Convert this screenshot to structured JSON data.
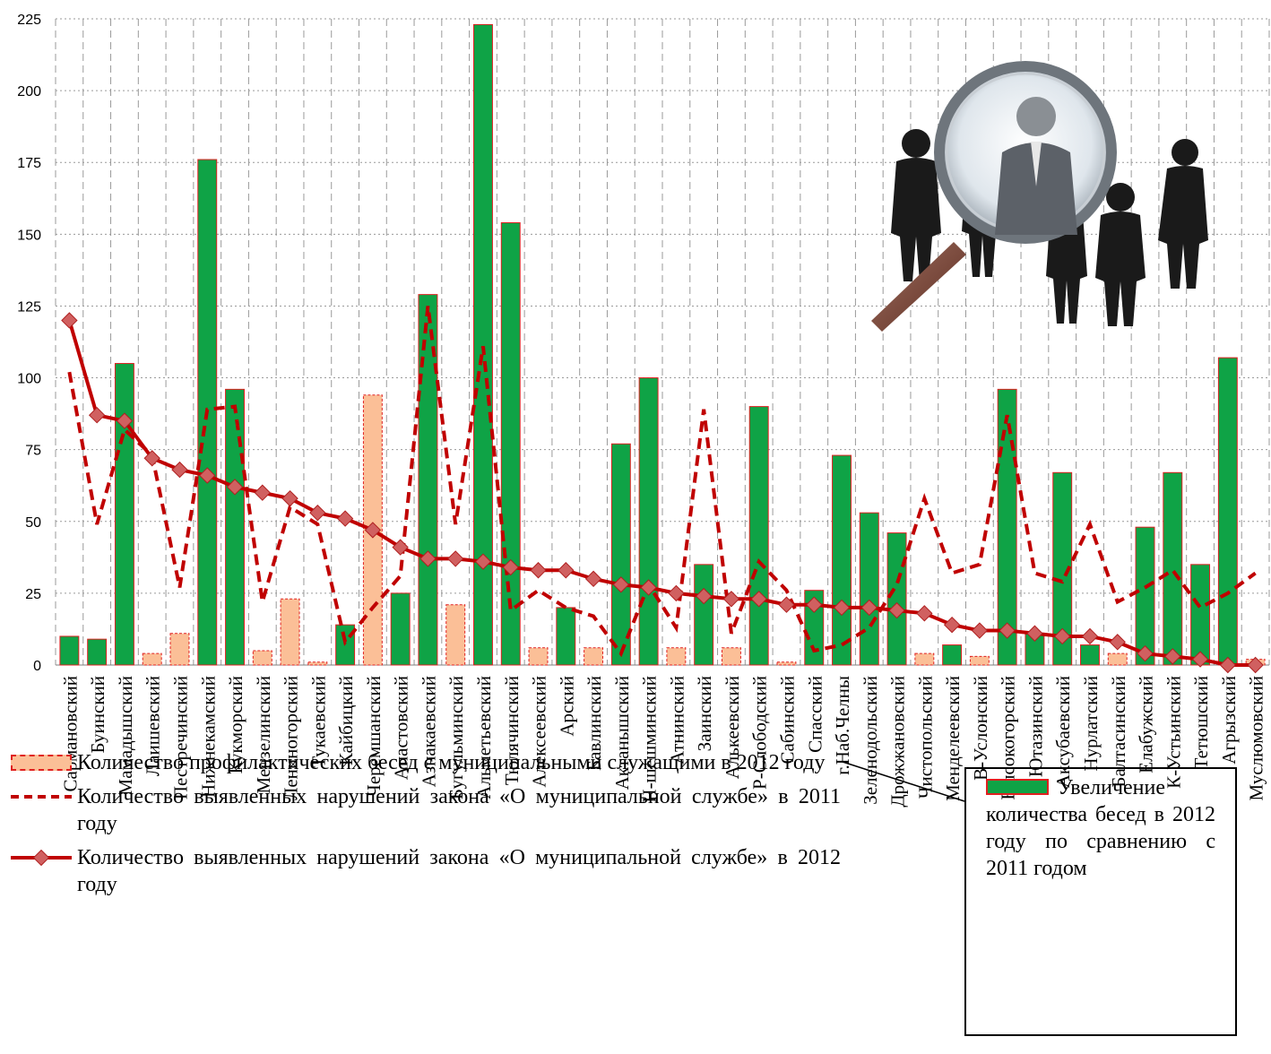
{
  "chart_data": {
    "type": "bar",
    "ylim": [
      0,
      225
    ],
    "yticks": [
      0,
      25,
      50,
      75,
      100,
      125,
      150,
      175,
      200,
      225
    ],
    "grid": true,
    "categories": [
      "Сармановский",
      "Буинский",
      "Мамадышский",
      "Лаишевский",
      "Пестречинский",
      "Нижнекамский",
      "Кукморский",
      "Мензелинский",
      "Лениногорский",
      "Тукаевский",
      "Кайбицкий",
      "Черемшанский",
      "Апастовский",
      "Азнакаевский",
      "Бугульминский",
      "Альметьевский",
      "Тюлячинский",
      "Алексеевский",
      "Арский",
      "Бавлинский",
      "Актанышский",
      "Н-шешминский",
      "Атнинский",
      "Заинский",
      "Алькеевский",
      "Р-Слободский",
      "Сабинский",
      "Спасский",
      "г.Наб.Челны",
      "Зеленодольский",
      "Дрожжановский",
      "Чистопольский",
      "Менделеевский",
      "В-Услонский",
      "Высокогорский",
      "Ютазинский",
      "Аксубаевский",
      "Нурлатский",
      "Балтасинский",
      "Елабужский",
      "К-Устьинский",
      "Тетюшский",
      "Агрызский",
      "Муслюмовский"
    ],
    "series": [
      {
        "name": "Количество профилактических бесед с муниципальными служащими в 2012 году",
        "kind": "bar",
        "color": "#fbbf97",
        "values": [
          10,
          9,
          105,
          4,
          11,
          176,
          96,
          5,
          23,
          1,
          14,
          94,
          25,
          129,
          21,
          223,
          154,
          6,
          20,
          6,
          77,
          100,
          6,
          35,
          6,
          90,
          1,
          26,
          73,
          53,
          46,
          4,
          7,
          3,
          96,
          11,
          67,
          7,
          4,
          48,
          67,
          35,
          107,
          2
        ]
      },
      {
        "name": "Увеличение количества бесед в 2012 году по сравнению с 2011 годом",
        "kind": "bar-flag",
        "color": "#0fa346",
        "values": [
          true,
          true,
          true,
          false,
          false,
          true,
          true,
          false,
          false,
          false,
          true,
          false,
          true,
          true,
          false,
          true,
          true,
          false,
          true,
          false,
          true,
          true,
          false,
          true,
          false,
          true,
          false,
          true,
          true,
          true,
          true,
          false,
          true,
          false,
          true,
          true,
          true,
          true,
          false,
          true,
          true,
          true,
          true,
          false
        ]
      },
      {
        "name": "Количество выявленных нарушений закона «О муниципальной службе» в 2011 году",
        "kind": "line-dashed",
        "color": "#c00000",
        "values": [
          102,
          49,
          82,
          73,
          27,
          89,
          90,
          22,
          55,
          49,
          8,
          20,
          31,
          125,
          49,
          111,
          19,
          26,
          20,
          17,
          4,
          28,
          13,
          89,
          11,
          36,
          26,
          5,
          7,
          13,
          28,
          58,
          32,
          35,
          87,
          32,
          29,
          49,
          22,
          27,
          33,
          20,
          25,
          32
        ]
      },
      {
        "name": "Количество выявленных нарушений закона «О муниципальной службе» в 2012 году",
        "kind": "line-markers",
        "color": "#c00000",
        "values": [
          120,
          87,
          85,
          72,
          68,
          66,
          62,
          60,
          58,
          53,
          51,
          47,
          41,
          37,
          37,
          36,
          34,
          33,
          33,
          30,
          28,
          27,
          25,
          24,
          23,
          23,
          21,
          21,
          20,
          20,
          19,
          18,
          14,
          12,
          12,
          11,
          10,
          10,
          8,
          4,
          3,
          2,
          0,
          0
        ]
      }
    ]
  },
  "legend": {
    "bar_label": "Количество профилактических бесед с муниципальными служащими в 2012 году",
    "dashed_label": "Количество выявленных нарушений закона «О муниципальной службе» в 2011 году",
    "solid_label": "Количество выявленных нарушений закона «О муниципальной службе» в 2012 году",
    "green_label": "Увеличение количества бесед в 2012 году по сравнению с 2011 годом"
  }
}
